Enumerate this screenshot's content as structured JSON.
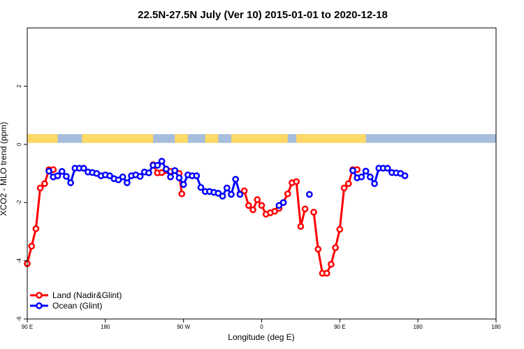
{
  "chart_data": {
    "type": "line",
    "title": "22.5N-27.5N July (Ver 10)   2015-01-01 to 2020-12-18",
    "xlabel": "Longitude (deg E)",
    "ylabel": "XCO2 - MLO trend (ppm)",
    "xlim": [
      -90,
      180
    ],
    "ylim": [
      -6,
      4
    ],
    "x_ticks": [
      {
        "value": -90,
        "label": "90 E"
      },
      {
        "value": -45,
        "label": "180"
      },
      {
        "value": 0,
        "label": "90 W"
      },
      {
        "value": 45,
        "label": "0"
      },
      {
        "value": 90,
        "label": "90 E"
      },
      {
        "value": 135,
        "label": "180"
      }
    ],
    "y_ticks": [
      {
        "value": -6,
        "label": "-6"
      },
      {
        "value": -4,
        "label": "-4"
      },
      {
        "value": -2,
        "label": "-2"
      },
      {
        "value": 0,
        "label": "0"
      },
      {
        "value": 2,
        "label": "2"
      }
    ],
    "map_strip": {
      "y_range": [
        0.05,
        0.35
      ],
      "land_color": "#FFD966",
      "ocean_color": "#A6BDDB",
      "land_intervals": [
        [
          -90,
          -72.5
        ],
        [
          -58.5,
          -17.5
        ],
        [
          -5,
          2.5
        ],
        [
          12.5,
          20
        ],
        [
          27.5,
          60
        ],
        [
          65,
          105
        ]
      ]
    },
    "series": [
      {
        "name": "Land (Nadir&Glint)",
        "color": "#FF0000",
        "points": [
          [
            -90,
            -4.1
          ],
          [
            -87.5,
            -3.5
          ],
          [
            -85,
            -2.9
          ],
          [
            -82.5,
            -1.5
          ],
          [
            -80,
            -1.35
          ],
          [
            -77.5,
            -0.87
          ],
          [
            -75,
            -0.87
          ],
          [
            -17.5,
            -0.7
          ],
          [
            -15,
            -0.98
          ],
          [
            -12.5,
            -0.97
          ],
          [
            -10,
            -0.9
          ],
          [
            -7.5,
            -0.93
          ],
          [
            -2.5,
            -1.0
          ],
          [
            -1,
            -1.7
          ],
          [
            32.5,
            -1.7
          ],
          [
            35,
            -1.6
          ],
          [
            37.5,
            -2.1
          ],
          [
            40,
            -2.25
          ],
          [
            42.5,
            -1.9
          ],
          [
            45,
            -2.1
          ],
          [
            47.5,
            -2.4
          ],
          [
            50,
            -2.35
          ],
          [
            52.5,
            -2.3
          ],
          [
            55,
            -2.2
          ],
          [
            57.5,
            -2.0
          ],
          [
            60,
            -1.7
          ],
          [
            62.5,
            -1.32
          ],
          [
            65,
            -1.28
          ],
          [
            67.5,
            -2.82
          ],
          [
            70,
            -2.22
          ],
          [
            75,
            -2.33
          ],
          [
            77.5,
            -3.6
          ],
          [
            80,
            -4.43
          ],
          [
            82.5,
            -4.43
          ],
          [
            85,
            -4.12
          ],
          [
            87.5,
            -3.55
          ],
          [
            90,
            -2.92
          ],
          [
            92.5,
            -1.5
          ],
          [
            95,
            -1.35
          ],
          [
            97.5,
            -0.87
          ],
          [
            100,
            -0.87
          ]
        ]
      },
      {
        "name": "Ocean (Glint)",
        "color": "#0000FF",
        "points": [
          [
            -77.5,
            -0.92
          ],
          [
            -75,
            -1.12
          ],
          [
            -72.5,
            -1.08
          ],
          [
            -70,
            -0.93
          ],
          [
            -67.5,
            -1.1
          ],
          [
            -65,
            -1.32
          ],
          [
            -62.5,
            -0.82
          ],
          [
            -60,
            -0.82
          ],
          [
            -57.5,
            -0.82
          ],
          [
            -55,
            -0.95
          ],
          [
            -52.5,
            -0.97
          ],
          [
            -50,
            -1.0
          ],
          [
            -47.5,
            -1.08
          ],
          [
            -45,
            -1.05
          ],
          [
            -42.5,
            -1.08
          ],
          [
            -40,
            -1.18
          ],
          [
            -37.5,
            -1.22
          ],
          [
            -35,
            -1.12
          ],
          [
            -32.5,
            -1.32
          ],
          [
            -30,
            -1.08
          ],
          [
            -27.5,
            -1.05
          ],
          [
            -25,
            -1.1
          ],
          [
            -22.5,
            -0.95
          ],
          [
            -20,
            -0.98
          ],
          [
            -17.5,
            -0.72
          ],
          [
            -15,
            -0.72
          ],
          [
            -12.5,
            -0.58
          ],
          [
            -10,
            -0.85
          ],
          [
            -7.5,
            -1.12
          ],
          [
            -5,
            -0.9
          ],
          [
            -2.5,
            -1.15
          ],
          [
            0,
            -1.38
          ],
          [
            2.5,
            -1.05
          ],
          [
            5,
            -1.08
          ],
          [
            7.5,
            -1.08
          ],
          [
            10,
            -1.48
          ],
          [
            12.5,
            -1.62
          ],
          [
            15,
            -1.62
          ],
          [
            17.5,
            -1.65
          ],
          [
            20,
            -1.68
          ],
          [
            22.5,
            -1.78
          ],
          [
            25,
            -1.5
          ],
          [
            27.5,
            -1.72
          ],
          [
            30,
            -1.2
          ],
          [
            32.5,
            -1.72
          ],
          [
            55,
            -2.1
          ],
          [
            57.5,
            -2.0
          ],
          [
            72.5,
            -1.72
          ],
          [
            97.5,
            -0.9
          ],
          [
            100,
            -1.15
          ],
          [
            102.5,
            -1.12
          ],
          [
            105,
            -0.92
          ],
          [
            107.5,
            -1.12
          ],
          [
            110,
            -1.35
          ],
          [
            112.5,
            -0.82
          ],
          [
            115,
            -0.82
          ],
          [
            117.5,
            -0.82
          ],
          [
            120,
            -0.97
          ],
          [
            122.5,
            -0.98
          ],
          [
            125,
            -1.0
          ],
          [
            127.5,
            -1.08
          ]
        ]
      }
    ],
    "legend": {
      "position": "bottom-left",
      "entries": [
        {
          "label": "Land (Nadir&Glint)",
          "color": "#FF0000"
        },
        {
          "label": "Ocean (Glint)",
          "color": "#0000FF"
        }
      ]
    }
  }
}
